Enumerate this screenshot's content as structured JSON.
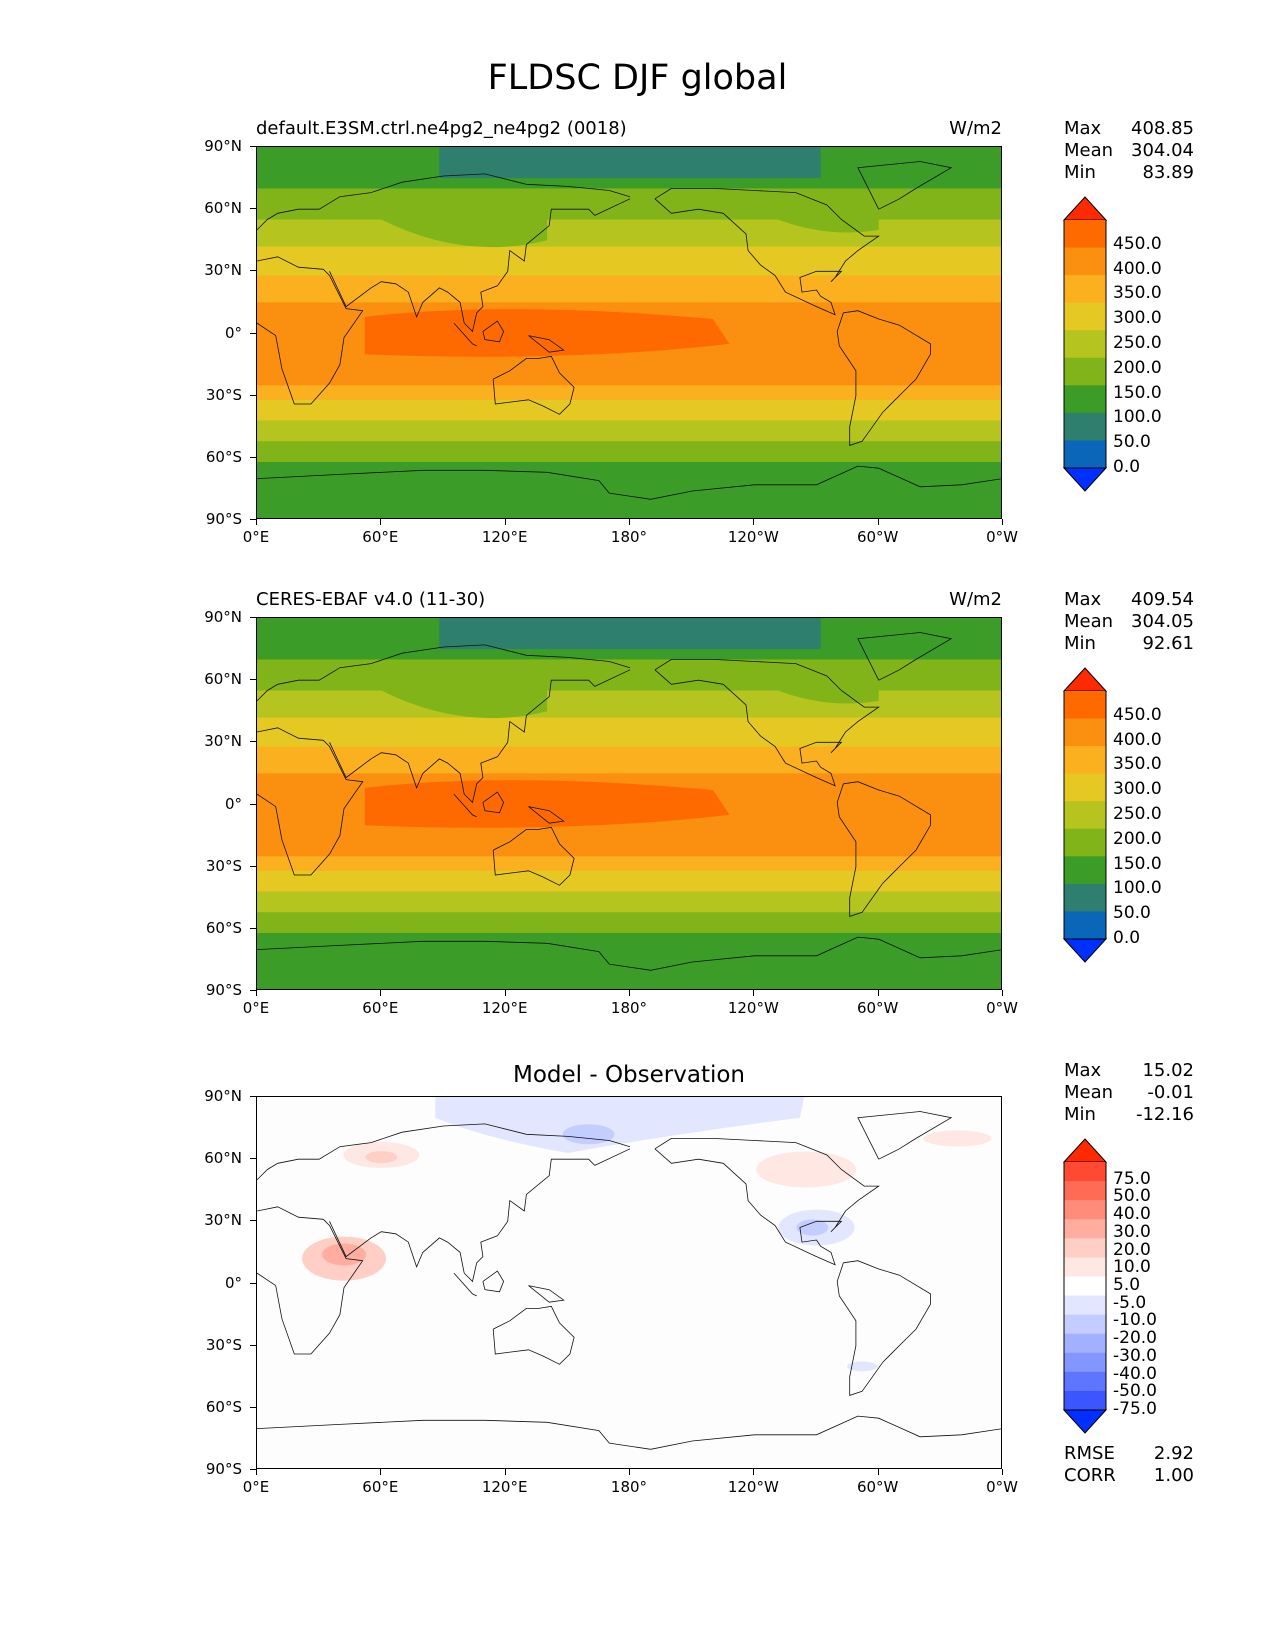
{
  "figure": {
    "title": "FLDSC DJF global"
  },
  "axes": {
    "lat_ticks": [
      "90°N",
      "60°N",
      "30°N",
      "0°",
      "30°S",
      "60°S",
      "90°S"
    ],
    "lon_ticks": [
      "0°E",
      "60°E",
      "120°E",
      "180°",
      "120°W",
      "60°W",
      "0°W"
    ]
  },
  "panels": [
    {
      "title_left": "default.E3SM.ctrl.ne4pg2_ne4pg2 (0018)",
      "title_right": "W/m2",
      "stats": {
        "max_label": "Max",
        "max": "408.85",
        "mean_label": "Mean",
        "mean": "304.04",
        "min_label": "Min",
        "min": "83.89"
      },
      "colorbar_labels": [
        "450.0",
        "400.0",
        "350.0",
        "300.0",
        "250.0",
        "200.0",
        "150.0",
        "100.0",
        "50.0",
        "0.0"
      ]
    },
    {
      "title_left": "CERES-EBAF v4.0 (11-30)",
      "title_right": "W/m2",
      "stats": {
        "max_label": "Max",
        "max": "409.54",
        "mean_label": "Mean",
        "mean": "304.05",
        "min_label": "Min",
        "min": "92.61"
      },
      "colorbar_labels": [
        "450.0",
        "400.0",
        "350.0",
        "300.0",
        "250.0",
        "200.0",
        "150.0",
        "100.0",
        "50.0",
        "0.0"
      ]
    },
    {
      "title_center": "Model - Observation",
      "stats": {
        "max_label": "Max",
        "max": "15.02",
        "mean_label": "Mean",
        "mean": "-0.01",
        "min_label": "Min",
        "min": "-12.16"
      },
      "colorbar_labels": [
        "75.0",
        "50.0",
        "40.0",
        "30.0",
        "20.0",
        "10.0",
        "5.0",
        "-5.0",
        "-10.0",
        "-20.0",
        "-30.0",
        "-40.0",
        "-50.0",
        "-75.0"
      ],
      "rmse_label": "RMSE",
      "rmse": "2.92",
      "corr_label": "CORR",
      "corr": "1.00"
    }
  ],
  "colors": {
    "field_levels": [
      "#ff2a00",
      "#ff6a00",
      "#fb8f0f",
      "#fbb01f",
      "#e5c822",
      "#b5c41e",
      "#80b418",
      "#3c9c28",
      "#2f7f6f",
      "#0a66b8",
      "#0030ff"
    ],
    "diff_levels": [
      "#ff2a00",
      "#ff4a33",
      "#ff6b55",
      "#ff8c7a",
      "#ffad9f",
      "#ffcfc6",
      "#ffe8e4",
      "#ffffff",
      "#e2e7ff",
      "#c4cdff",
      "#a3b0ff",
      "#8396ff",
      "#5f75ff",
      "#3b55ff",
      "#0030ff"
    ]
  }
}
